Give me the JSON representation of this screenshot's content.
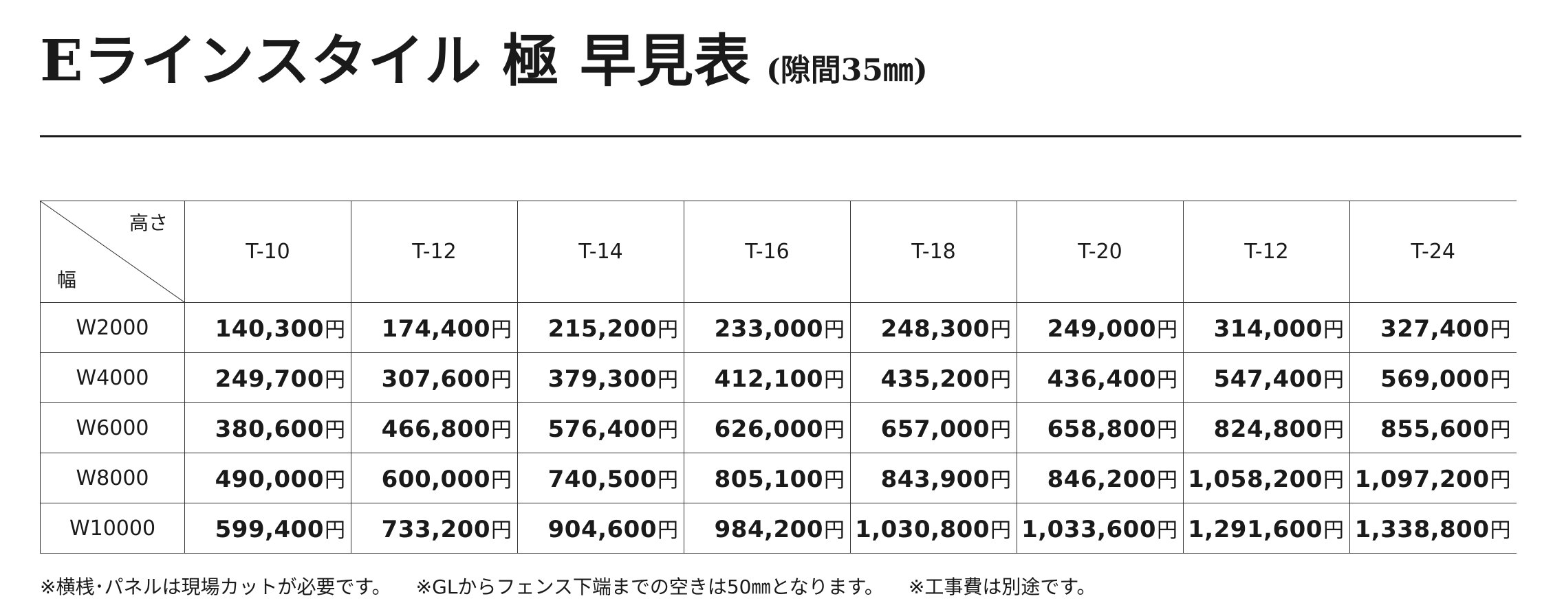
{
  "title": {
    "main": "Eラインスタイル 極 早見表",
    "sub": "(隙間35㎜)"
  },
  "table": {
    "corner": {
      "top_label": "高さ",
      "bottom_label": "幅"
    },
    "columns": [
      "T-10",
      "T-12",
      "T-14",
      "T-16",
      "T-18",
      "T-20",
      "T-12",
      "T-24"
    ],
    "currency": "円",
    "rows": [
      {
        "label": "W2000",
        "prices": [
          "140,300",
          "174,400",
          "215,200",
          "233,000",
          "248,300",
          "249,000",
          "314,000",
          "327,400"
        ]
      },
      {
        "label": "W4000",
        "prices": [
          "249,700",
          "307,600",
          "379,300",
          "412,100",
          "435,200",
          "436,400",
          "547,400",
          "569,000"
        ]
      },
      {
        "label": "W6000",
        "prices": [
          "380,600",
          "466,800",
          "576,400",
          "626,000",
          "657,000",
          "658,800",
          "824,800",
          "855,600"
        ]
      },
      {
        "label": "W8000",
        "prices": [
          "490,000",
          "600,000",
          "740,500",
          "805,100",
          "843,900",
          "846,200",
          "1,058,200",
          "1,097,200"
        ]
      },
      {
        "label": "W10000",
        "prices": [
          "599,400",
          "733,200",
          "904,600",
          "984,200",
          "1,030,800",
          "1,033,600",
          "1,291,600",
          "1,338,800"
        ]
      }
    ]
  },
  "notes": [
    "※横桟･パネルは現場カットが必要です。",
    "※GLからフェンス下端までの空きは50㎜となります。",
    "※工事費は別途です。"
  ]
}
